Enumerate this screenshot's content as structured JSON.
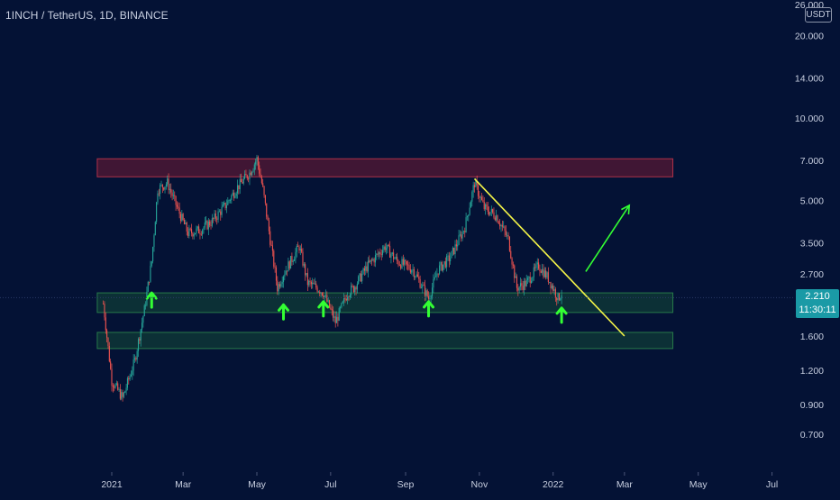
{
  "header": {
    "symbol": "1INCH / TetherUS, 1D, BINANCE",
    "currency_unit": "USDT"
  },
  "last_price": {
    "value": "2.210",
    "countdown": "11:30:11"
  },
  "colors": {
    "background": "#041235",
    "bull_candle": "#26a69a",
    "bear_candle": "#ef5350",
    "resistance_zone": "#b32035",
    "support_zone": "#1d6b3a",
    "trendline": "#f5f548",
    "arrows": "#33ff33",
    "price_tag": "#1a9aa6"
  },
  "chart_data": {
    "type": "candlestick",
    "scale": "log",
    "x_axis": {
      "tick_labels": [
        "2021",
        "Mar",
        "May",
        "Jul",
        "Sep",
        "Nov",
        "2022",
        "Mar",
        "May",
        "Jul"
      ],
      "tick_dates": [
        "2021-01-01",
        "2021-03-01",
        "2021-05-01",
        "2021-07-01",
        "2021-09-01",
        "2021-11-01",
        "2022-01-01",
        "2022-03-01",
        "2022-05-01",
        "2022-07-01"
      ]
    },
    "y_axis": {
      "tick_labels": [
        "26.000",
        "20.000",
        "14.000",
        "10.000",
        "7.000",
        "5.000",
        "3.500",
        "2.700",
        "1.600",
        "1.200",
        "0.900",
        "0.700"
      ],
      "range": [
        0.6,
        26
      ]
    },
    "series": [
      {
        "type": "close_path",
        "x": [
          "2020-12-25",
          "2021-01-01",
          "2021-01-10",
          "2021-01-20",
          "2021-01-28",
          "2021-02-03",
          "2021-02-08",
          "2021-02-16",
          "2021-02-25",
          "2021-03-05",
          "2021-03-15",
          "2021-03-25",
          "2021-04-05",
          "2021-04-15",
          "2021-04-25",
          "2021-05-01",
          "2021-05-06",
          "2021-05-12",
          "2021-05-18",
          "2021-05-23",
          "2021-06-05",
          "2021-06-12",
          "2021-06-20",
          "2021-06-25",
          "2021-07-05",
          "2021-07-15",
          "2021-07-20",
          "2021-08-01",
          "2021-08-15",
          "2021-08-25",
          "2021-09-07",
          "2021-09-20",
          "2021-09-28",
          "2021-10-08",
          "2021-10-20",
          "2021-10-28",
          "2021-11-05",
          "2021-11-15",
          "2021-11-25",
          "2021-12-02",
          "2021-12-10",
          "2021-12-20",
          "2021-12-28",
          "2022-01-05",
          "2022-01-08"
        ],
        "y": [
          2.1,
          1.1,
          0.95,
          1.3,
          2.0,
          3.0,
          5.5,
          5.8,
          4.6,
          3.8,
          3.9,
          4.2,
          4.8,
          5.6,
          6.3,
          7.1,
          5.5,
          3.6,
          2.4,
          2.7,
          3.4,
          2.5,
          2.4,
          2.3,
          1.8,
          2.3,
          2.4,
          2.9,
          3.4,
          3.0,
          2.8,
          2.2,
          2.8,
          3.1,
          4.0,
          5.8,
          4.7,
          4.4,
          3.6,
          2.4,
          2.5,
          2.9,
          2.6,
          2.2,
          2.3
        ]
      }
    ],
    "annotations": {
      "resistance_zone": {
        "from_date": "2020-12-20",
        "to_date": "2022-04-10",
        "price_low": 6.1,
        "price_high": 7.1
      },
      "support_zone": {
        "from_date": "2020-12-20",
        "to_date": "2022-04-10",
        "price_low": 1.95,
        "price_high": 2.3
      },
      "lower_support_zone": {
        "from_date": "2020-12-20",
        "to_date": "2022-04-10",
        "price_low": 1.44,
        "price_high": 1.65
      },
      "descending_trendline": {
        "from": [
          "2021-10-28",
          6.0
        ],
        "to": [
          "2022-03-01",
          1.6
        ]
      },
      "bounce_arrows": [
        [
          "2021-02-03",
          2.1
        ],
        [
          "2021-05-23",
          1.9
        ],
        [
          "2021-06-25",
          1.95
        ],
        [
          "2021-09-20",
          1.95
        ],
        [
          "2022-01-08",
          1.85
        ]
      ],
      "projection_arrow": {
        "from": [
          "2022-01-28",
          2.75
        ],
        "to": [
          "2022-03-05",
          4.8
        ]
      }
    }
  }
}
